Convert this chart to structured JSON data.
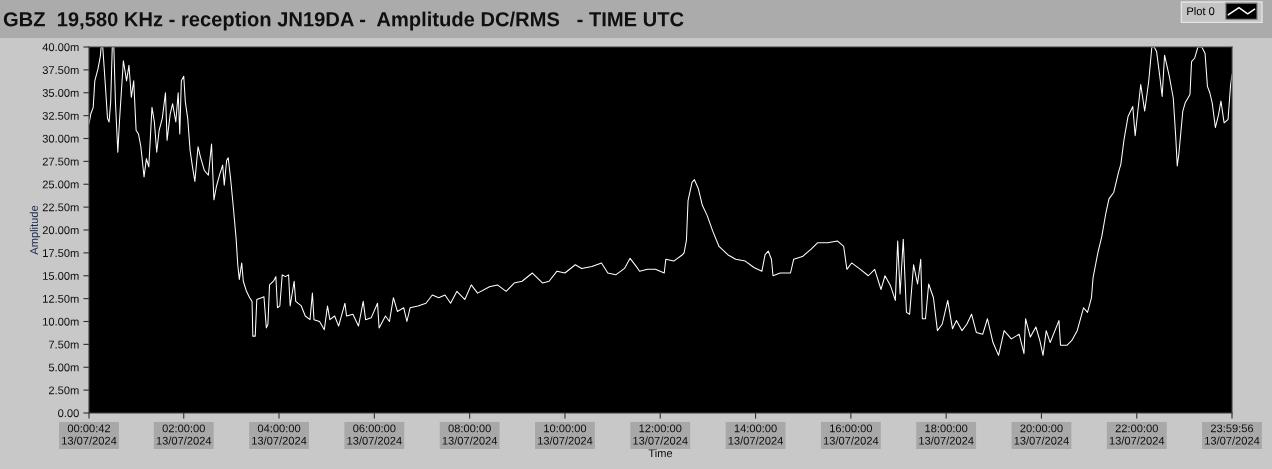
{
  "chart_data": {
    "type": "line",
    "title": "GBZ  19,580 KHz - reception JN19DA -  Amplitude DC/RMS   - TIME UTC",
    "xlabel": "Time",
    "ylabel": "Amplitude",
    "legend": "top right",
    "marker": "none",
    "line_style": "solid",
    "xlim": [
      "2024-07-13T00:00:42",
      "2024-07-13T23:59:56"
    ],
    "xticks": [
      {
        "value": "2024-07-13T00:00:42",
        "label": "00:00:42\n13/07/2024"
      },
      {
        "value": "2024-07-13T02:00",
        "label": "02:00:00\n13/07/2024"
      },
      {
        "value": "2024-07-13T04:00",
        "label": "04:00:00\n13/07/2024"
      },
      {
        "value": "2024-07-13T06:00",
        "label": "06:00:00\n13/07/2024"
      },
      {
        "value": "2024-07-13T08:00",
        "label": "08:00:00\n13/07/2024"
      },
      {
        "value": "2024-07-13T10:00",
        "label": "10:00:00\n13/07/2024"
      },
      {
        "value": "2024-07-13T12:00",
        "label": "12:00:00\n13/07/2024"
      },
      {
        "value": "2024-07-13T14:00",
        "label": "14:00:00\n13/07/2024"
      },
      {
        "value": "2024-07-13T16:00",
        "label": "16:00:00\n13/07/2024"
      },
      {
        "value": "2024-07-13T18:00",
        "label": "18:00:00\n13/07/2024"
      },
      {
        "value": "2024-07-13T20:00",
        "label": "20:00:00\n13/07/2024"
      },
      {
        "value": "2024-07-13T22:00",
        "label": "22:00:00\n13/07/2024"
      },
      {
        "value": "2024-07-13T23:59:56",
        "label": "23:59:56\n13/07/2024"
      }
    ],
    "ylim": [
      0,
      40
    ],
    "yticks": [
      {
        "value": 0,
        "label": "0.00"
      },
      {
        "value": 2.5,
        "label": "2.50m"
      },
      {
        "value": 5,
        "label": "5.00m"
      },
      {
        "value": 7.5,
        "label": "7.50m"
      },
      {
        "value": 10,
        "label": "10.00m"
      },
      {
        "value": 12.5,
        "label": "12.50m"
      },
      {
        "value": 15,
        "label": "15.00m"
      },
      {
        "value": 17.5,
        "label": "17.50m"
      },
      {
        "value": 20,
        "label": "20.00m"
      },
      {
        "value": 22.5,
        "label": "22.50m"
      },
      {
        "value": 25,
        "label": "25.00m"
      },
      {
        "value": 27.5,
        "label": "27.50m"
      },
      {
        "value": 30,
        "label": "30.00m"
      },
      {
        "value": 32.5,
        "label": "32.50m"
      },
      {
        "value": 35,
        "label": "35.00m"
      },
      {
        "value": 37.5,
        "label": "37.50m"
      },
      {
        "value": 40,
        "label": "40.00m"
      }
    ],
    "series": [
      {
        "name": "Plot 0",
        "color": "#ffffff",
        "x": [
          "2024-07-13T00:00:42",
          "2024-07-13T00:03",
          "2024-07-13T00:06",
          "2024-07-13T00:08",
          "2024-07-13T00:12",
          "2024-07-13T00:15",
          "2024-07-13T00:16",
          "2024-07-13T00:18",
          "2024-07-13T00:20",
          "2024-07-13T00:22",
          "2024-07-13T00:24",
          "2024-07-13T00:26",
          "2024-07-13T00:28",
          "2024-07-13T00:30",
          "2024-07-13T00:32",
          "2024-07-13T00:34",
          "2024-07-13T00:37",
          "2024-07-13T00:39",
          "2024-07-13T00:41",
          "2024-07-13T00:44",
          "2024-07-13T00:48",
          "2024-07-13T00:51",
          "2024-07-13T00:54",
          "2024-07-13T00:57",
          "2024-07-13T01:00",
          "2024-07-13T01:03",
          "2024-07-13T01:06",
          "2024-07-13T01:10",
          "2024-07-13T01:13",
          "2024-07-13T01:16",
          "2024-07-13T01:20",
          "2024-07-13T01:23",
          "2024-07-13T01:26",
          "2024-07-13T01:29",
          "2024-07-13T01:33",
          "2024-07-13T01:37",
          "2024-07-13T01:39",
          "2024-07-13T01:43",
          "2024-07-13T01:46",
          "2024-07-13T01:50",
          "2024-07-13T01:53",
          "2024-07-13T01:55",
          "2024-07-13T01:57",
          "2024-07-13T02:00",
          "2024-07-13T02:02",
          "2024-07-13T02:05",
          "2024-07-13T02:08",
          "2024-07-13T02:11",
          "2024-07-13T02:14",
          "2024-07-13T02:18",
          "2024-07-13T02:21",
          "2024-07-13T02:26",
          "2024-07-13T02:31",
          "2024-07-13T02:35",
          "2024-07-13T02:38",
          "2024-07-13T02:41",
          "2024-07-13T02:45",
          "2024-07-13T02:49",
          "2024-07-13T02:51",
          "2024-07-13T02:54",
          "2024-07-13T02:56",
          "2024-07-13T02:59",
          "2024-07-13T03:02",
          "2024-07-13T03:06",
          "2024-07-13T03:08",
          "2024-07-13T03:10",
          "2024-07-13T03:13",
          "2024-07-13T03:15",
          "2024-07-13T03:19",
          "2024-07-13T03:23",
          "2024-07-13T03:26",
          "2024-07-13T03:27",
          "2024-07-13T03:30",
          "2024-07-13T03:32",
          "2024-07-13T03:38",
          "2024-07-13T03:41",
          "2024-07-13T03:44",
          "2024-07-13T03:46",
          "2024-07-13T03:48",
          "2024-07-13T03:53",
          "2024-07-13T03:56",
          "2024-07-13T03:58",
          "2024-07-13T04:01",
          "2024-07-13T04:04",
          "2024-07-13T04:08",
          "2024-07-13T04:12",
          "2024-07-13T04:14",
          "2024-07-13T04:19",
          "2024-07-13T04:21",
          "2024-07-13T04:28",
          "2024-07-13T04:33",
          "2024-07-13T04:39",
          "2024-07-13T04:42",
          "2024-07-13T04:44",
          "2024-07-13T04:51",
          "2024-07-13T04:57",
          "2024-07-13T05:01",
          "2024-07-13T05:04",
          "2024-07-13T05:10",
          "2024-07-13T05:15",
          "2024-07-13T05:23",
          "2024-07-13T05:25",
          "2024-07-13T05:33",
          "2024-07-13T05:40",
          "2024-07-13T05:46",
          "2024-07-13T05:49",
          "2024-07-13T05:56",
          "2024-07-13T06:04",
          "2024-07-13T06:06",
          "2024-07-13T06:14",
          "2024-07-13T06:19",
          "2024-07-13T06:24",
          "2024-07-13T06:29",
          "2024-07-13T06:37",
          "2024-07-13T06:41",
          "2024-07-13T06:45",
          "2024-07-13T06:55",
          "2024-07-13T07:05",
          "2024-07-13T07:13",
          "2024-07-13T07:21",
          "2024-07-13T07:29",
          "2024-07-13T07:36",
          "2024-07-13T07:44",
          "2024-07-13T07:54",
          "2024-07-13T08:02",
          "2024-07-13T08:10",
          "2024-07-13T08:25",
          "2024-07-13T08:35",
          "2024-07-13T08:46",
          "2024-07-13T08:56",
          "2024-07-13T09:06",
          "2024-07-13T09:19",
          "2024-07-13T09:32",
          "2024-07-13T09:40",
          "2024-07-13T09:50",
          "2024-07-13T10:00",
          "2024-07-13T10:13",
          "2024-07-13T10:21",
          "2024-07-13T10:34",
          "2024-07-13T10:46",
          "2024-07-13T10:54",
          "2024-07-13T11:04",
          "2024-07-13T11:15",
          "2024-07-13T11:22",
          "2024-07-13T11:30",
          "2024-07-13T11:34",
          "2024-07-13T11:44",
          "2024-07-13T11:54",
          "2024-07-13T12:05",
          "2024-07-13T12:07",
          "2024-07-13T12:17",
          "2024-07-13T12:28",
          "2024-07-13T12:30",
          "2024-07-13T12:33",
          "2024-07-13T12:35",
          "2024-07-13T12:40",
          "2024-07-13T12:43",
          "2024-07-13T12:48",
          "2024-07-13T12:53",
          "2024-07-13T12:59",
          "2024-07-13T13:06",
          "2024-07-13T13:14",
          "2024-07-13T13:25",
          "2024-07-13T13:35",
          "2024-07-13T13:47",
          "2024-07-13T13:58",
          "2024-07-13T14:08",
          "2024-07-13T14:12",
          "2024-07-13T14:16",
          "2024-07-13T14:20",
          "2024-07-13T14:22",
          "2024-07-13T14:31",
          "2024-07-13T14:44",
          "2024-07-13T14:48",
          "2024-07-13T14:59",
          "2024-07-13T15:10",
          "2024-07-13T15:18",
          "2024-07-13T15:31",
          "2024-07-13T15:43",
          "2024-07-13T15:51",
          "2024-07-13T15:55",
          "2024-07-13T16:01",
          "2024-07-13T16:12",
          "2024-07-13T16:22",
          "2024-07-13T16:30",
          "2024-07-13T16:38",
          "2024-07-13T16:43",
          "2024-07-13T16:50",
          "2024-07-13T16:56",
          "2024-07-13T16:59",
          "2024-07-13T17:02",
          "2024-07-13T17:06",
          "2024-07-13T17:10",
          "2024-07-13T17:14",
          "2024-07-13T17:19",
          "2024-07-13T17:24",
          "2024-07-13T17:28",
          "2024-07-13T17:30",
          "2024-07-13T17:34",
          "2024-07-13T17:38",
          "2024-07-13T17:44",
          "2024-07-13T17:49",
          "2024-07-13T17:55",
          "2024-07-13T18:02",
          "2024-07-13T18:08",
          "2024-07-13T18:13",
          "2024-07-13T18:20",
          "2024-07-13T18:26",
          "2024-07-13T18:32",
          "2024-07-13T18:38",
          "2024-07-13T18:46",
          "2024-07-13T18:52",
          "2024-07-13T18:59",
          "2024-07-13T19:06",
          "2024-07-13T19:13",
          "2024-07-13T19:22",
          "2024-07-13T19:32",
          "2024-07-13T19:38",
          "2024-07-13T19:40",
          "2024-07-13T19:46",
          "2024-07-13T19:53",
          "2024-07-13T19:58",
          "2024-07-13T20:02",
          "2024-07-13T20:06",
          "2024-07-13T20:11",
          "2024-07-13T20:22",
          "2024-07-13T20:24",
          "2024-07-13T20:32",
          "2024-07-13T20:38",
          "2024-07-13T20:45",
          "2024-07-13T20:53",
          "2024-07-13T20:58",
          "2024-07-13T21:03",
          "2024-07-13T21:05",
          "2024-07-13T21:11",
          "2024-07-13T21:16",
          "2024-07-13T21:21",
          "2024-07-13T21:25",
          "2024-07-13T21:31",
          "2024-07-13T21:37",
          "2024-07-13T21:40",
          "2024-07-13T21:44",
          "2024-07-13T21:49",
          "2024-07-13T21:55",
          "2024-07-13T21:58",
          "2024-07-13T22:05",
          "2024-07-13T22:10",
          "2024-07-13T22:15",
          "2024-07-13T22:19",
          "2024-07-13T22:22",
          "2024-07-13T22:25",
          "2024-07-13T22:29",
          "2024-07-13T22:32",
          "2024-07-13T22:35",
          "2024-07-13T22:41",
          "2024-07-13T22:46",
          "2024-07-13T22:49",
          "2024-07-13T22:51",
          "2024-07-13T22:53",
          "2024-07-13T22:58",
          "2024-07-13T23:01",
          "2024-07-13T23:07",
          "2024-07-13T23:09",
          "2024-07-13T23:13",
          "2024-07-13T23:17",
          "2024-07-13T23:22",
          "2024-07-13T23:26",
          "2024-07-13T23:29",
          "2024-07-13T23:32",
          "2024-07-13T23:35",
          "2024-07-13T23:39",
          "2024-07-13T23:43",
          "2024-07-13T23:46",
          "2024-07-13T23:50",
          "2024-07-13T23:55",
          "2024-07-13T23:58",
          "2024-07-13T23:59:56"
        ],
        "values": [
          31.6,
          32.7,
          33.4,
          36.3,
          37.6,
          39.0,
          40.0,
          40.0,
          37.5,
          34.9,
          32.2,
          31.8,
          34.0,
          40.0,
          40.0,
          34.0,
          28.5,
          31.8,
          34.5,
          38.5,
          36.3,
          38.0,
          34.5,
          36.3,
          30.9,
          30.5,
          29.1,
          25.8,
          27.8,
          26.9,
          33.4,
          31.8,
          28.5,
          30.9,
          32.2,
          35.0,
          29.8,
          32.7,
          33.8,
          31.8,
          35.0,
          30.5,
          36.3,
          36.8,
          34.0,
          32.2,
          28.7,
          26.9,
          25.3,
          29.1,
          28.0,
          26.5,
          26.0,
          29.4,
          23.3,
          24.7,
          26.0,
          27.1,
          24.9,
          27.6,
          27.9,
          25.6,
          22.9,
          19.0,
          16.2,
          14.6,
          16.4,
          14.4,
          13.3,
          12.6,
          12.2,
          8.4,
          8.4,
          12.4,
          12.6,
          12.7,
          9.3,
          9.7,
          14.0,
          14.4,
          14.9,
          11.5,
          11.7,
          15.1,
          14.9,
          15.1,
          11.7,
          14.4,
          12.2,
          11.7,
          10.6,
          10.2,
          13.1,
          10.2,
          10.0,
          9.1,
          11.7,
          10.2,
          10.6,
          9.5,
          12.0,
          10.6,
          10.8,
          9.5,
          12.2,
          10.2,
          10.4,
          12.0,
          9.3,
          10.6,
          10.0,
          12.6,
          11.1,
          11.5,
          10.0,
          11.5,
          11.7,
          12.0,
          12.9,
          12.6,
          12.9,
          12.0,
          13.3,
          12.4,
          14.0,
          13.1,
          13.8,
          14.0,
          13.3,
          14.2,
          14.4,
          15.3,
          14.2,
          14.4,
          15.5,
          15.3,
          16.2,
          15.8,
          16.0,
          16.4,
          15.3,
          15.1,
          15.8,
          16.9,
          16.0,
          15.5,
          15.7,
          15.7,
          15.3,
          16.8,
          16.6,
          17.3,
          17.5,
          18.9,
          23.2,
          25.2,
          25.5,
          24.5,
          22.7,
          21.6,
          19.9,
          18.2,
          17.3,
          16.8,
          16.6,
          15.9,
          15.5,
          17.3,
          17.7,
          16.8,
          15.0,
          15.3,
          15.3,
          16.8,
          17.1,
          17.9,
          18.6,
          18.6,
          18.8,
          18.2,
          15.7,
          16.4,
          15.7,
          15.0,
          15.7,
          13.5,
          15.0,
          13.9,
          12.3,
          18.8,
          13.0,
          19.0,
          11.0,
          10.8,
          16.2,
          14.1,
          16.8,
          10.3,
          10.3,
          14.1,
          12.6,
          9.0,
          9.7,
          12.3,
          9.2,
          10.1,
          9.0,
          9.7,
          10.8,
          8.8,
          8.6,
          10.3,
          7.7,
          6.3,
          9.0,
          8.1,
          8.6,
          6.5,
          10.3,
          8.3,
          9.4,
          7.9,
          6.3,
          9.0,
          7.7,
          10.1,
          7.4,
          7.4,
          7.9,
          9.0,
          11.5,
          11.0,
          12.6,
          14.8,
          17.5,
          19.3,
          21.8,
          23.4,
          24.1,
          26.3,
          27.2,
          29.9,
          32.4,
          33.5,
          30.3,
          35.9,
          33.0,
          36.2,
          40.0,
          40.0,
          39.5,
          36.8,
          34.6,
          39.1,
          36.8,
          34.4,
          30.3,
          27.0,
          28.3,
          33.0,
          33.9,
          34.8,
          38.4,
          38.8,
          40.0,
          40.0,
          39.3,
          35.7,
          35.0,
          33.9,
          31.2,
          32.6,
          34.1,
          31.7,
          32.1,
          35.7,
          37.0
        ]
      }
    ]
  }
}
